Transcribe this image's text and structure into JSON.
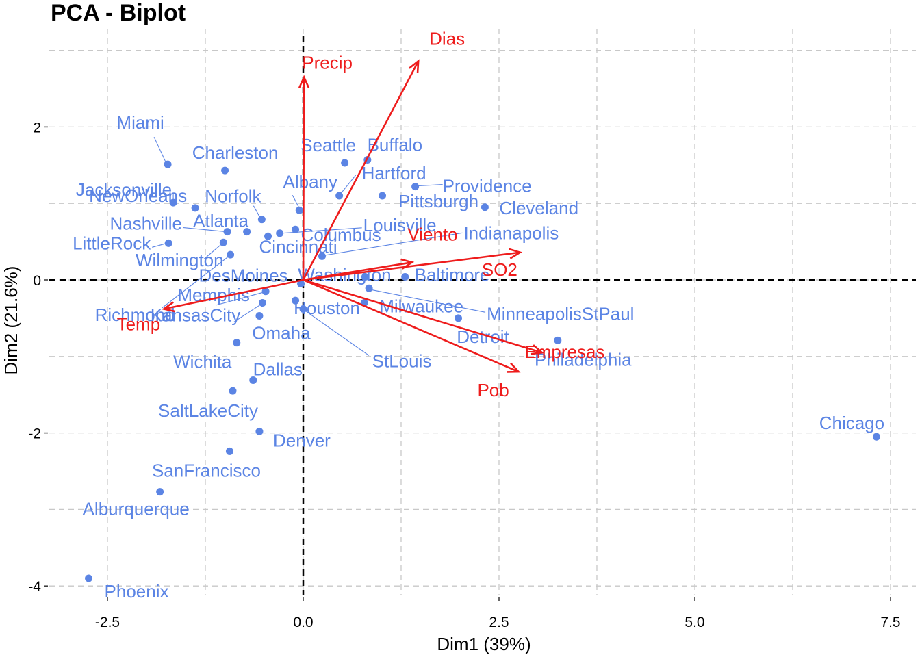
{
  "chart_data": {
    "type": "scatter",
    "title": "PCA - Biplot",
    "xlabel": "Dim1 (39%)",
    "ylabel": "Dim2 (21.6%)",
    "xlim": [
      -3.2,
      7.9
    ],
    "ylim": [
      -4.2,
      3.0
    ],
    "x_ticks": [
      -2.5,
      0.0,
      2.5,
      5.0,
      7.5
    ],
    "x_tick_labels": [
      "-2.5",
      "0.0",
      "2.5",
      "5.0",
      "7.5"
    ],
    "y_ticks": [
      -4,
      -2,
      0,
      2
    ],
    "y_tick_labels": [
      "-4",
      "-2",
      "0",
      "2"
    ],
    "grid": true,
    "colors": {
      "points": "#5B84E4",
      "arrows": "#EE1C1C",
      "grid": "#C8C8C8"
    },
    "points": [
      {
        "label": "Miami",
        "x": -1.73,
        "y": 1.51
      },
      {
        "label": "Jacksonville",
        "x": -1.66,
        "y": 1.01
      },
      {
        "label": "NewOrleans",
        "x": -1.38,
        "y": 0.94
      },
      {
        "label": "Charleston",
        "x": -1.0,
        "y": 1.43
      },
      {
        "label": "Norfolk",
        "x": -0.53,
        "y": 0.79
      },
      {
        "label": "Nashville",
        "x": -0.97,
        "y": 0.63
      },
      {
        "label": "Atlanta",
        "x": -0.72,
        "y": 0.63
      },
      {
        "label": "LittleRock",
        "x": -1.72,
        "y": 0.48
      },
      {
        "label": "Wilmington",
        "x": -1.02,
        "y": 0.49
      },
      {
        "label": "Richmond",
        "x": -0.93,
        "y": 0.33
      },
      {
        "label": "Cincinnati",
        "x": -0.45,
        "y": 0.57
      },
      {
        "label": "Louisville",
        "x": -0.3,
        "y": 0.61
      },
      {
        "label": "Columbus",
        "x": -0.1,
        "y": 0.66
      },
      {
        "label": "Albany",
        "x": -0.05,
        "y": 0.91
      },
      {
        "label": "Seattle",
        "x": 0.53,
        "y": 1.53
      },
      {
        "label": "Buffalo",
        "x": 0.82,
        "y": 1.57
      },
      {
        "label": "Hartford",
        "x": 0.46,
        "y": 1.1
      },
      {
        "label": "Providence",
        "x": 1.43,
        "y": 1.22
      },
      {
        "label": "Pittsburgh",
        "x": 1.01,
        "y": 1.1
      },
      {
        "label": "Cleveland",
        "x": 2.32,
        "y": 0.95
      },
      {
        "label": "Indianapolis",
        "x": 0.24,
        "y": 0.31
      },
      {
        "label": "DesMoines",
        "x": -0.03,
        "y": -0.05
      },
      {
        "label": "Washington",
        "x": 0.79,
        "y": 0.04
      },
      {
        "label": "Baltimore",
        "x": 1.3,
        "y": 0.04
      },
      {
        "label": "MinneapolisStPaul",
        "x": 0.84,
        "y": -0.11
      },
      {
        "label": "Memphis",
        "x": -0.48,
        "y": -0.15
      },
      {
        "label": "Houston",
        "x": -0.1,
        "y": -0.27
      },
      {
        "label": "Milwaukee",
        "x": 0.78,
        "y": -0.3
      },
      {
        "label": "KansasCity",
        "x": -0.52,
        "y": -0.3
      },
      {
        "label": "Omaha",
        "x": -0.56,
        "y": -0.47
      },
      {
        "label": "StLouis",
        "x": 0.0,
        "y": -0.38
      },
      {
        "label": "Detroit",
        "x": 1.98,
        "y": -0.5
      },
      {
        "label": "Philadelphia",
        "x": 3.25,
        "y": -0.79
      },
      {
        "label": "Wichita",
        "x": -0.85,
        "y": -0.82
      },
      {
        "label": "Dallas",
        "x": -0.64,
        "y": -1.31
      },
      {
        "label": "SaltLakeCity",
        "x": -0.9,
        "y": -1.45
      },
      {
        "label": "Denver",
        "x": -0.56,
        "y": -1.98
      },
      {
        "label": "SanFrancisco",
        "x": -0.94,
        "y": -2.24
      },
      {
        "label": "Alburquerque",
        "x": -1.83,
        "y": -2.77
      },
      {
        "label": "Phoenix",
        "x": -2.74,
        "y": -3.9
      },
      {
        "label": "Chicago",
        "x": 7.32,
        "y": -2.05
      }
    ],
    "arrows": [
      {
        "label": "Dias",
        "x": 1.47,
        "y": 2.86
      },
      {
        "label": "Precip",
        "x": 0.01,
        "y": 2.65
      },
      {
        "label": "Viento",
        "x": 1.39,
        "y": 0.23
      },
      {
        "label": "SO2",
        "x": 2.77,
        "y": 0.36
      },
      {
        "label": "Empresas",
        "x": 3.05,
        "y": -0.95
      },
      {
        "label": "Pob",
        "x": 2.75,
        "y": -1.2
      },
      {
        "label": "Temp",
        "x": -1.78,
        "y": -0.38
      }
    ]
  }
}
